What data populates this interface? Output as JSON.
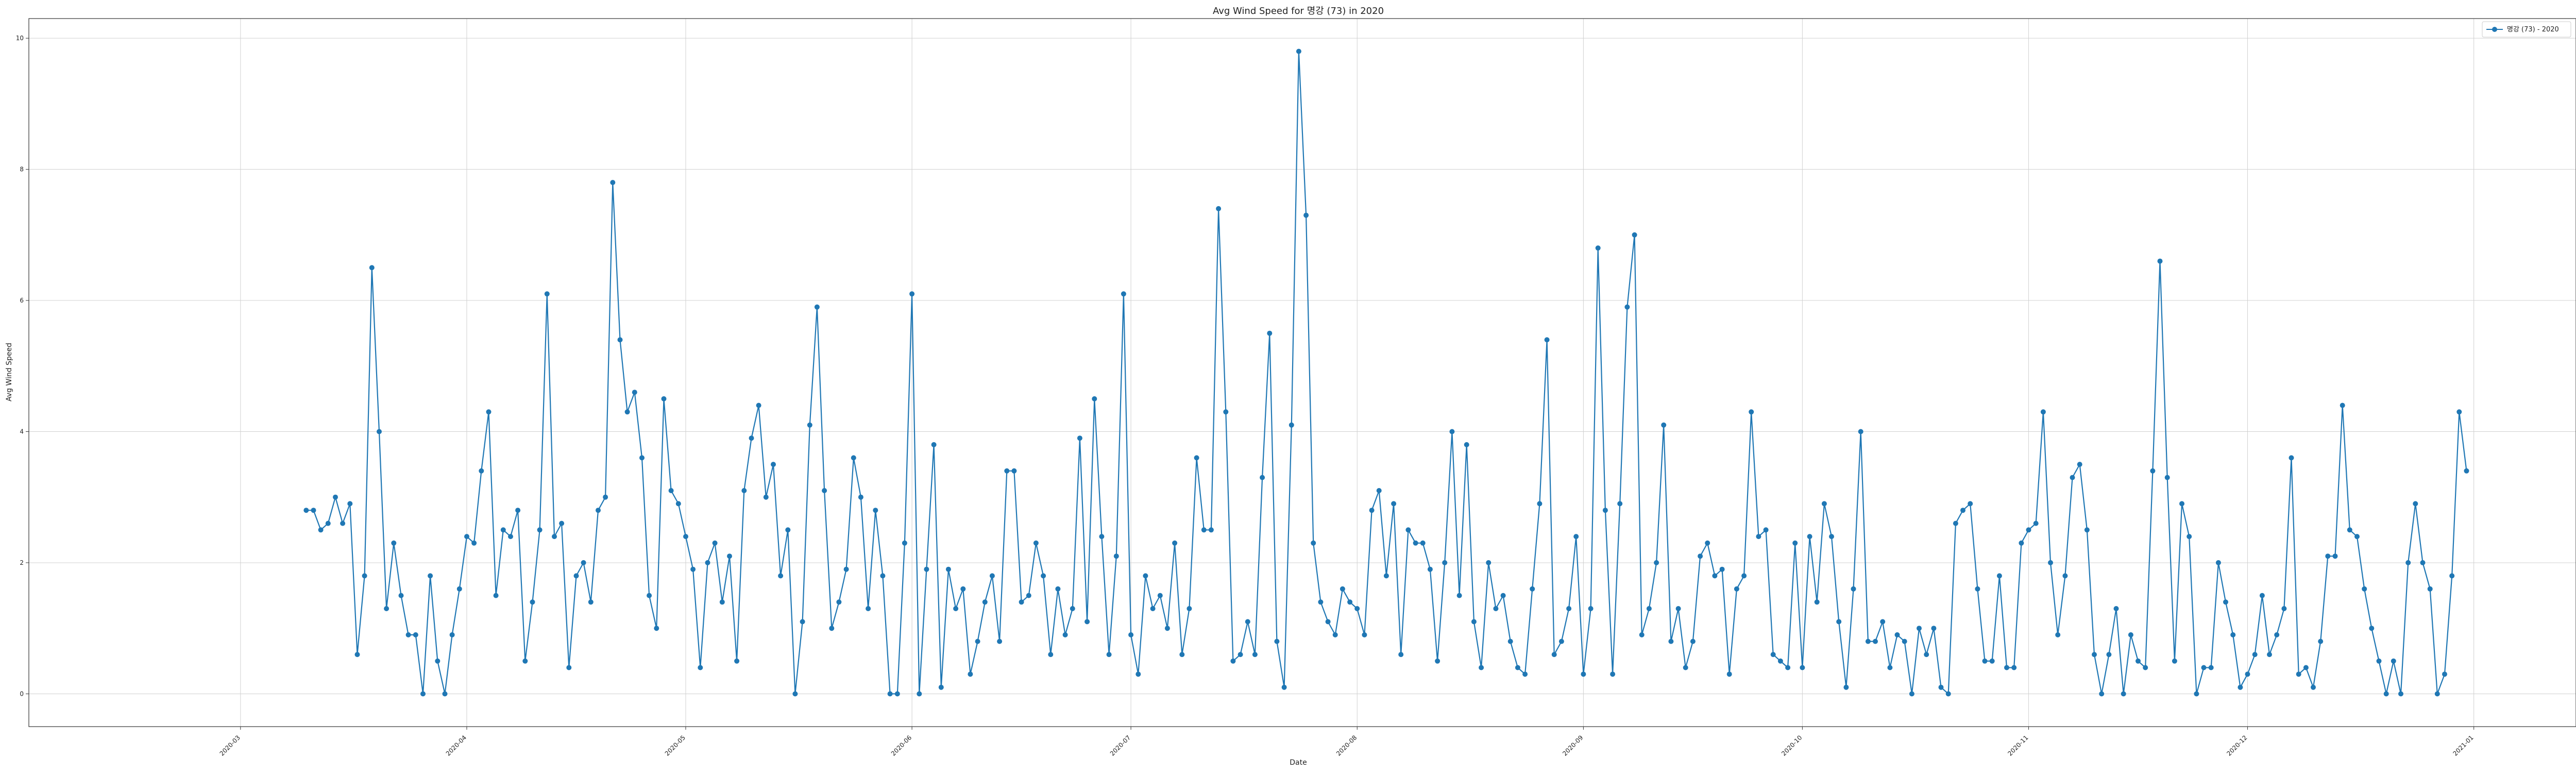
{
  "chart_data": {
    "type": "line",
    "title": "Avg Wind Speed for 명강 (73) in 2020",
    "xlabel": "Date",
    "ylabel": "Avg Wind Speed",
    "x_range": [
      "2020-02-01",
      "2021-01-15"
    ],
    "ylim": [
      -0.5,
      10.3
    ],
    "y_ticks": [
      0,
      2,
      4,
      6,
      8,
      10
    ],
    "x_ticks": [
      "2020-03",
      "2020-04",
      "2020-05",
      "2020-06",
      "2020-07",
      "2020-08",
      "2020-09",
      "2020-10",
      "2020-11",
      "2020-12",
      "2021-01"
    ],
    "grid": true,
    "legend_position": "top-right",
    "colors": {
      "series": "#1f77b4",
      "grid": "#d0d0d0",
      "axis": "#333333"
    },
    "series": [
      {
        "name": "명강 (73) - 2020",
        "start_date": "2020-03-10",
        "values": [
          2.8,
          2.8,
          2.5,
          2.6,
          3.0,
          2.6,
          2.9,
          0.6,
          1.8,
          6.5,
          4.0,
          1.3,
          2.3,
          1.5,
          0.9,
          0.9,
          0.0,
          1.8,
          0.5,
          0.0,
          0.9,
          1.6,
          2.4,
          2.3,
          3.4,
          4.3,
          1.5,
          2.5,
          2.4,
          2.8,
          0.5,
          1.4,
          2.5,
          6.1,
          2.4,
          2.6,
          0.4,
          1.8,
          2.0,
          1.4,
          2.8,
          3.0,
          7.8,
          5.4,
          4.3,
          4.6,
          3.6,
          1.5,
          1.0,
          4.5,
          3.1,
          2.9,
          2.4,
          1.9,
          0.4,
          2.0,
          2.3,
          1.4,
          2.1,
          0.5,
          3.1,
          3.9,
          4.4,
          3.0,
          3.5,
          1.8,
          2.5,
          0.0,
          1.1,
          4.1,
          5.9,
          3.1,
          1.0,
          1.4,
          1.9,
          3.6,
          3.0,
          1.3,
          2.8,
          1.8,
          0.0,
          0.0,
          2.3,
          6.1,
          0.0,
          1.9,
          3.8,
          0.1,
          1.9,
          1.3,
          1.6,
          0.3,
          0.8,
          1.4,
          1.8,
          0.8,
          3.4,
          3.4,
          1.4,
          1.5,
          2.3,
          1.8,
          0.6,
          1.6,
          0.9,
          1.3,
          3.9,
          1.1,
          4.5,
          2.4,
          0.6,
          2.1,
          6.1,
          0.9,
          0.3,
          1.8,
          1.3,
          1.5,
          1.0,
          2.3,
          0.6,
          1.3,
          3.6,
          2.5,
          2.5,
          7.4,
          4.3,
          0.5,
          0.6,
          1.1,
          0.6,
          3.3,
          5.5,
          0.8,
          0.1,
          4.1,
          9.8,
          7.3,
          2.3,
          1.4,
          1.1,
          0.9,
          1.6,
          1.4,
          1.3,
          0.9,
          2.8,
          3.1,
          1.8,
          2.9,
          0.6,
          2.5,
          2.3,
          2.3,
          1.9,
          0.5,
          2.0,
          4.0,
          1.5,
          3.8,
          1.1,
          0.4,
          2.0,
          1.3,
          1.5,
          0.8,
          0.4,
          0.3,
          1.6,
          2.9,
          5.4,
          0.6,
          0.8,
          1.3,
          2.4,
          0.3,
          1.3,
          6.8,
          2.8,
          0.3,
          2.9,
          5.9,
          7.0,
          0.9,
          1.3,
          2.0,
          4.1,
          0.8,
          1.3,
          0.4,
          0.8,
          2.1,
          2.3,
          1.8,
          1.9,
          0.3,
          1.6,
          1.8,
          4.3,
          2.4,
          2.5,
          0.6,
          0.5,
          0.4,
          2.3,
          0.4,
          2.4,
          1.4,
          2.9,
          2.4,
          1.1,
          0.1,
          1.6,
          4.0,
          0.8,
          0.8,
          1.1,
          0.4,
          0.9,
          0.8,
          0.0,
          1.0,
          0.6,
          1.0,
          0.1,
          0.0,
          2.6,
          2.8,
          2.9,
          1.6,
          0.5,
          0.5,
          1.8,
          0.4,
          0.4,
          2.3,
          2.5,
          2.6,
          4.3,
          2.0,
          0.9,
          1.8,
          3.3,
          3.5,
          2.5,
          0.6,
          0.0,
          0.6,
          1.3,
          0.0,
          0.9,
          0.5,
          0.4,
          3.4,
          6.6,
          3.3,
          0.5,
          2.9,
          2.4,
          0.0,
          0.4,
          0.4,
          2.0,
          1.4,
          0.9,
          0.1,
          0.3,
          0.6,
          1.5,
          0.6,
          0.9,
          1.3,
          3.6,
          0.3,
          0.4,
          0.1,
          0.8,
          2.1,
          2.1,
          4.4,
          2.5,
          2.4,
          1.6,
          1.0,
          0.5,
          0.0,
          0.5,
          0.0,
          2.0,
          2.9,
          2.0,
          1.6,
          0.0,
          0.3,
          1.8,
          4.3,
          3.4
        ]
      }
    ]
  }
}
